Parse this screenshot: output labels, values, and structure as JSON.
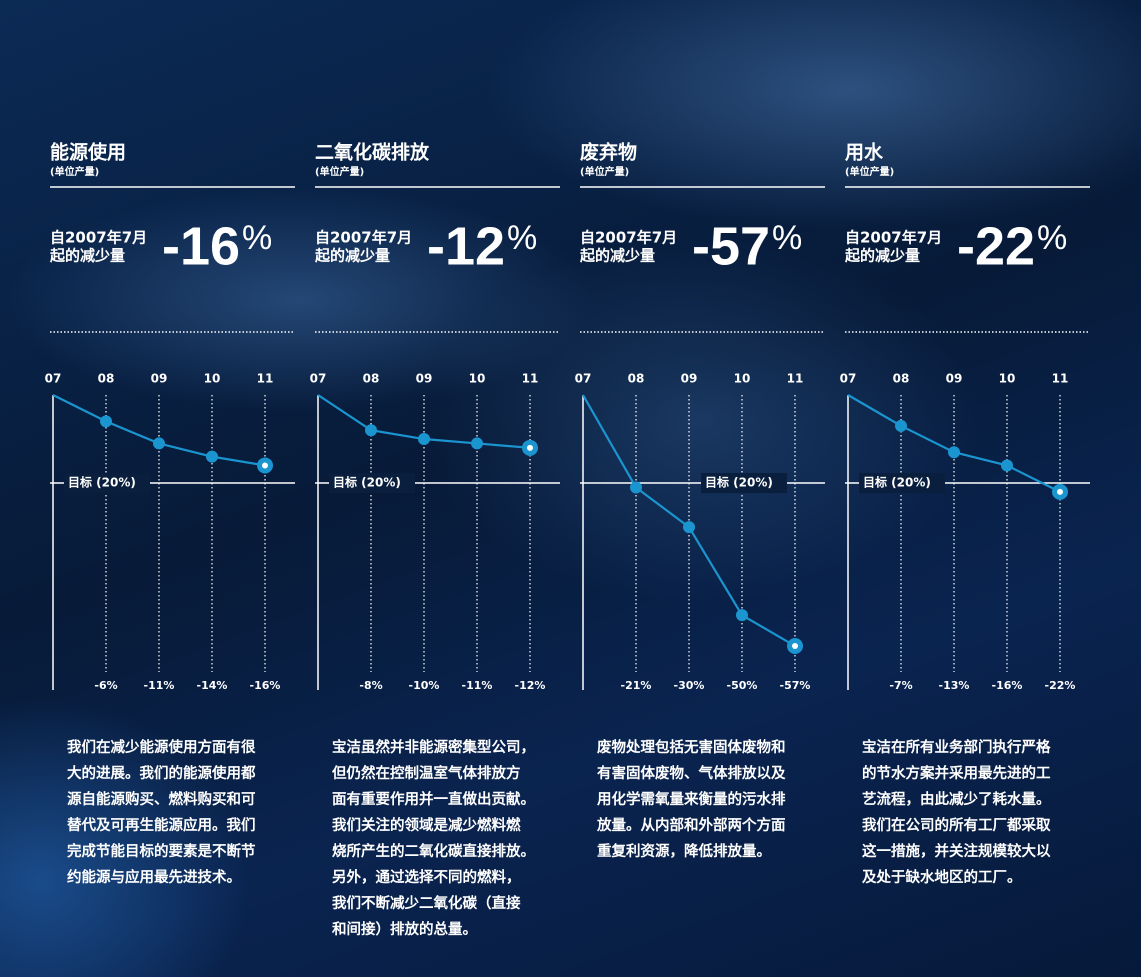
{
  "chart_data": [
    {
      "type": "line",
      "title": "能源使用",
      "subtitle": "(单位产量)",
      "since_label": [
        "自2007年7月",
        "起的减少量"
      ],
      "headline": -16,
      "headline_unit": "%",
      "categories": [
        "07",
        "08",
        "09",
        "10",
        "11"
      ],
      "values": [
        0,
        -6,
        -11,
        -14,
        -16
      ],
      "value_labels": [
        null,
        "-6%",
        "-11%",
        "-14%",
        "-16%"
      ],
      "target": {
        "value": -20,
        "label": "目标 (20%)"
      },
      "ylim": [
        -67,
        0
      ],
      "color": "#1b95d0",
      "description": [
        "我们在减少能源使用方面有很",
        "大的进展。我们的能源使用都",
        "源自能源购买、燃料购买和可",
        "替代及可再生能源应用。我们",
        "完成节能目标的要素是不断节",
        "约能源与应用最先进技术。"
      ]
    },
    {
      "type": "line",
      "title": "二氧化碳排放",
      "subtitle": "(单位产量)",
      "since_label": [
        "自2007年7月",
        "起的减少量"
      ],
      "headline": -12,
      "headline_unit": "%",
      "categories": [
        "07",
        "08",
        "09",
        "10",
        "11"
      ],
      "values": [
        0,
        -8,
        -10,
        -11,
        -12
      ],
      "value_labels": [
        null,
        "-8%",
        "-10%",
        "-11%",
        "-12%"
      ],
      "target": {
        "value": -20,
        "label": "目标 (20%)"
      },
      "ylim": [
        -67,
        0
      ],
      "color": "#1b95d0",
      "description": [
        "宝洁虽然并非能源密集型公司，",
        "但仍然在控制温室气体排放方",
        "面有重要作用并一直做出贡献。",
        "我们关注的领域是减少燃料燃",
        "烧所产生的二氧化碳直接排放。",
        "另外，通过选择不同的燃料，",
        "我们不断减少二氧化碳（直接",
        "和间接）排放的总量。"
      ]
    },
    {
      "type": "line",
      "title": "废弃物",
      "subtitle": "(单位产量)",
      "since_label": [
        "自2007年7月",
        "起的减少量"
      ],
      "headline": -57,
      "headline_unit": "%",
      "categories": [
        "07",
        "08",
        "09",
        "10",
        "11"
      ],
      "values": [
        0,
        -21,
        -30,
        -50,
        -57
      ],
      "value_labels": [
        null,
        "-21%",
        "-30%",
        "-50%",
        "-57%"
      ],
      "target": {
        "value": -20,
        "label": "目标 (20%)"
      },
      "ylim": [
        -67,
        0
      ],
      "color": "#1b95d0",
      "description": [
        "废物处理包括无害固体废物和",
        "有害固体废物、气体排放以及",
        "用化学需氧量来衡量的污水排",
        "放量。从内部和外部两个方面",
        "重复利资源，降低排放量。"
      ]
    },
    {
      "type": "line",
      "title": "用水",
      "subtitle": "(单位产量)",
      "since_label": [
        "自2007年7月",
        "起的减少量"
      ],
      "headline": -22,
      "headline_unit": "%",
      "categories": [
        "07",
        "08",
        "09",
        "10",
        "11"
      ],
      "values": [
        0,
        -7,
        -13,
        -16,
        -22
      ],
      "value_labels": [
        null,
        "-7%",
        "-13%",
        "-16%",
        "-22%"
      ],
      "target": {
        "value": -20,
        "label": "目标 (20%)"
      },
      "ylim": [
        -67,
        0
      ],
      "color": "#1b95d0",
      "description": [
        "宝洁在所有业务部门执行严格",
        "的节水方案并采用最先进的工",
        "艺流程，由此减少了耗水量。",
        "我们在公司的所有工厂都采取",
        "这一措施，并关注规模较大以",
        "及处于缺水地区的工厂。"
      ]
    }
  ]
}
